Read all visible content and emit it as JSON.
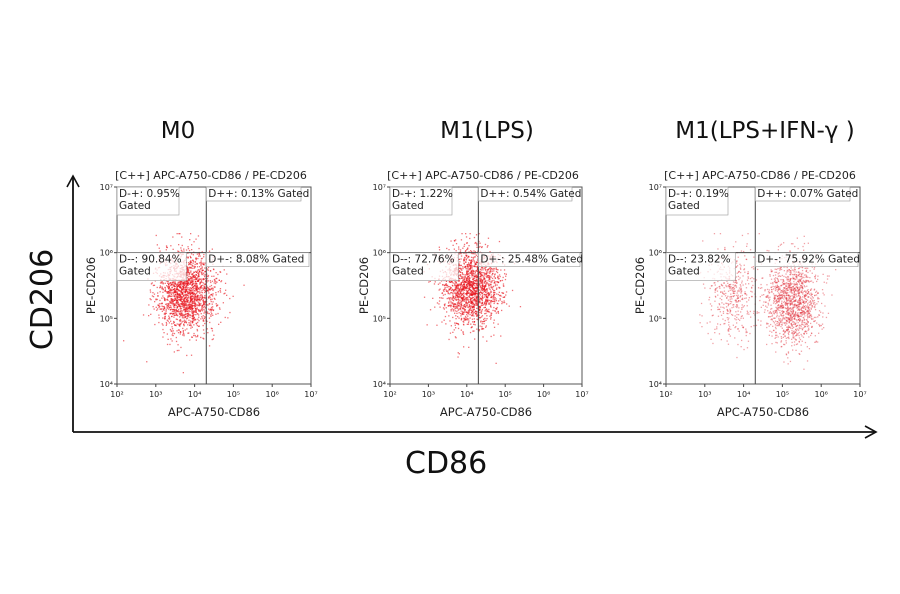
{
  "axes": {
    "x_label": "CD86",
    "y_label": "CD206"
  },
  "chart_data": [
    {
      "type": "scatter",
      "panel_title": "M0",
      "header": "[C++] APC-A750-CD86 / PE-CD206",
      "xlabel": "APC-A750-CD86",
      "ylabel": "PE-CD206",
      "x_scale": "log",
      "y_scale": "log",
      "xlim": [
        100,
        10000000
      ],
      "ylim": [
        10000,
        10000000
      ],
      "x_ticks": [
        "10²",
        "10³",
        "10⁴",
        "10⁵",
        "10⁶",
        "10⁷"
      ],
      "y_ticks": [
        "10⁴",
        "10⁵",
        "10⁶",
        "10⁷"
      ],
      "gates": {
        "x": 20000,
        "y": 1000000
      },
      "quadrants": {
        "D-+": "D-+: 0.95%\nGated",
        "D++": "D++: 0.13% Gated",
        "D--": "D--: 90.84%\nGated",
        "D+-": "D+-: 8.08% Gated"
      },
      "quadrant_percent": {
        "D-+": 0.95,
        "D++": 0.13,
        "D--": 90.84,
        "D+-": 8.08
      },
      "population_center": {
        "x": 6000,
        "y": 250000
      },
      "color": "#e8141c"
    },
    {
      "type": "scatter",
      "panel_title": "M1(LPS)",
      "header": "[C++] APC-A750-CD86 / PE-CD206",
      "xlabel": "APC-A750-CD86",
      "ylabel": "PE-CD206",
      "x_scale": "log",
      "y_scale": "log",
      "xlim": [
        100,
        10000000
      ],
      "ylim": [
        10000,
        10000000
      ],
      "x_ticks": [
        "10²",
        "10³",
        "10⁴",
        "10⁵",
        "10⁶",
        "10⁷"
      ],
      "y_ticks": [
        "10⁴",
        "10⁵",
        "10⁶",
        "10⁷"
      ],
      "gates": {
        "x": 20000,
        "y": 1000000
      },
      "quadrants": {
        "D-+": "D-+: 1.22%\nGated",
        "D++": "D++: 0.54% Gated",
        "D--": "D--: 72.76%\nGated",
        "D+-": "D+-: 25.48% Gated"
      },
      "quadrant_percent": {
        "D-+": 1.22,
        "D++": 0.54,
        "D--": 72.76,
        "D+-": 25.48
      },
      "population_center": {
        "x": 12000,
        "y": 300000
      },
      "color": "#e8141c"
    },
    {
      "type": "scatter",
      "panel_title": "M1(LPS+IFN-γ )",
      "header": "[C++] APC-A750-CD86 / PE-CD206",
      "xlabel": "APC-A750-CD86",
      "ylabel": "PE-CD206",
      "x_scale": "log",
      "y_scale": "log",
      "xlim": [
        100,
        10000000
      ],
      "ylim": [
        10000,
        10000000
      ],
      "x_ticks": [
        "10²",
        "10³",
        "10⁴",
        "10⁵",
        "10⁶",
        "10⁷"
      ],
      "y_ticks": [
        "10⁴",
        "10⁵",
        "10⁶",
        "10⁷"
      ],
      "gates": {
        "x": 20000,
        "y": 1000000
      },
      "quadrants": {
        "D-+": "D-+: 0.19%\nGated",
        "D++": "D++: 0.07% Gated",
        "D--": "D--: 23.82%\nGated",
        "D+-": "D+-: 75.92% Gated"
      },
      "quadrant_percent": {
        "D-+": 0.19,
        "D++": 0.07,
        "D--": 23.82,
        "D+-": 75.92
      },
      "population_center": {
        "x": 180000,
        "y": 180000
      },
      "color": "#e0303c"
    }
  ]
}
